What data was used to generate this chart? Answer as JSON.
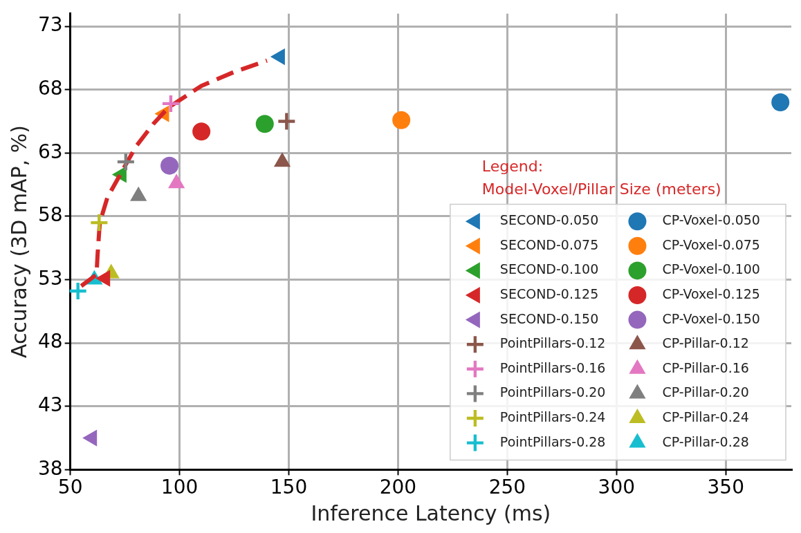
{
  "chart_data": {
    "type": "scatter",
    "xlabel": "Inference Latency (ms)",
    "ylabel": "Accuracy (3D mAP, %)",
    "legend_title": "Legend:\nModel-Voxel/Pillar Size (meters)",
    "xlim": [
      50,
      380
    ],
    "xticks": [
      50,
      100,
      150,
      200,
      250,
      300,
      350
    ],
    "ylim": [
      38,
      74
    ],
    "yticks": [
      38,
      43,
      48,
      53,
      58,
      63,
      68,
      73
    ],
    "grid": true,
    "legend": "bottom right",
    "series": [
      {
        "type": "line",
        "color": "#d62728",
        "line_style": "dashed",
        "marker": "none",
        "x": [
          55,
          62,
          62.5,
          63.5,
          67,
          73.5,
          80,
          88,
          95,
          110,
          125,
          140
        ],
        "values": [
          52.5,
          53.4,
          55,
          57.5,
          59.5,
          61.5,
          63.5,
          65.3,
          66.6,
          68.3,
          69.4,
          70.3
        ]
      },
      {
        "name": "SECOND-0.050",
        "color": "#1f77b4",
        "marker": "triangle-left",
        "x": [
          146
        ],
        "values": [
          70.6
        ]
      },
      {
        "name": "SECOND-0.075",
        "color": "#ff7f0e",
        "marker": "triangle-left",
        "x": [
          93
        ],
        "values": [
          66.1
        ]
      },
      {
        "name": "SECOND-0.100",
        "color": "#2ca02c",
        "marker": "triangle-left",
        "x": [
          73.5
        ],
        "values": [
          61.3
        ]
      },
      {
        "name": "SECOND-0.125",
        "color": "#d62728",
        "marker": "triangle-left",
        "x": [
          66
        ],
        "values": [
          53.1
        ]
      },
      {
        "name": "SECOND-0.150",
        "color": "#9467bd",
        "marker": "triangle-left",
        "x": [
          60
        ],
        "values": [
          40.5
        ]
      },
      {
        "name": "PointPillars-0.12",
        "color": "#8c564b",
        "marker": "cross",
        "x": [
          149
        ],
        "values": [
          65.5
        ]
      },
      {
        "name": "PointPillars-0.16",
        "color": "#e377c2",
        "marker": "cross",
        "x": [
          96
        ],
        "values": [
          66.9
        ]
      },
      {
        "name": "PointPillars-0.20",
        "color": "#7f7f7f",
        "marker": "cross",
        "x": [
          75.4
        ],
        "values": [
          62.3
        ]
      },
      {
        "name": "PointPillars-0.24",
        "color": "#bcbd22",
        "marker": "cross",
        "x": [
          63.2
        ],
        "values": [
          57.5
        ]
      },
      {
        "name": "PointPillars-0.28",
        "color": "#17becf",
        "marker": "cross",
        "x": [
          53.5
        ],
        "values": [
          52.1
        ]
      },
      {
        "name": "CP-Voxel-0.050",
        "color": "#1f77b4",
        "marker": "circle",
        "x": [
          375
        ],
        "values": [
          67.0
        ]
      },
      {
        "name": "CP-Voxel-0.075",
        "color": "#ff7f0e",
        "marker": "circle",
        "x": [
          201.5
        ],
        "values": [
          65.6
        ]
      },
      {
        "name": "CP-Voxel-0.100",
        "color": "#2ca02c",
        "marker": "circle",
        "x": [
          139
        ],
        "values": [
          65.3
        ]
      },
      {
        "name": "CP-Voxel-0.125",
        "color": "#d62728",
        "marker": "circle",
        "x": [
          110
        ],
        "values": [
          64.7
        ]
      },
      {
        "name": "CP-Voxel-0.150",
        "color": "#9467bd",
        "marker": "circle",
        "x": [
          95.4
        ],
        "values": [
          62.0
        ]
      },
      {
        "name": "CP-Pillar-0.12",
        "color": "#8c564b",
        "marker": "triangle",
        "x": [
          147
        ],
        "values": [
          62.3
        ]
      },
      {
        "name": "CP-Pillar-0.16",
        "color": "#e377c2",
        "marker": "triangle",
        "x": [
          98.6
        ],
        "values": [
          60.6
        ]
      },
      {
        "name": "CP-Pillar-0.20",
        "color": "#7f7f7f",
        "marker": "triangle",
        "x": [
          81.2
        ],
        "values": [
          59.6
        ]
      },
      {
        "name": "CP-Pillar-0.24",
        "color": "#bcbd22",
        "marker": "triangle",
        "x": [
          68.7
        ],
        "values": [
          53.5
        ]
      },
      {
        "name": "CP-Pillar-0.28",
        "color": "#17becf",
        "marker": "triangle",
        "x": [
          61
        ],
        "values": [
          53.0
        ]
      }
    ]
  }
}
